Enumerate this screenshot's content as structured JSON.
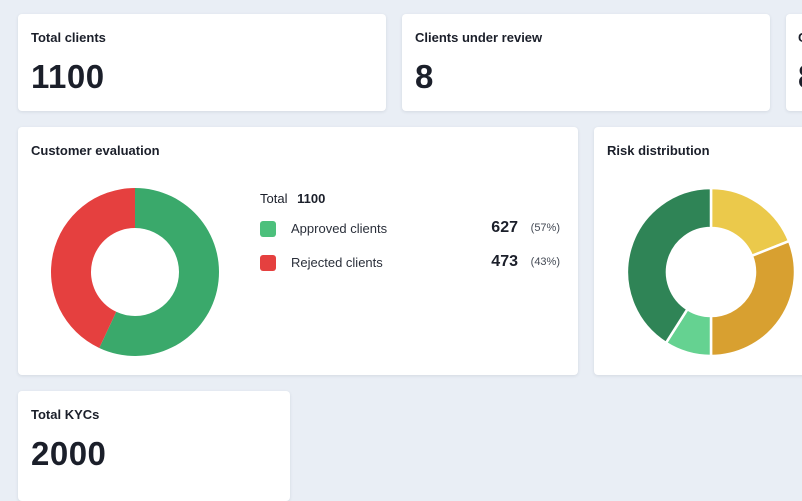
{
  "stats": {
    "total_clients": {
      "label": "Total clients",
      "value": "1100"
    },
    "clients_under_review": {
      "label": "Clients under review",
      "value": "8"
    },
    "third": {
      "label": "C",
      "value": "8"
    },
    "total_kycs": {
      "label": "Total KYCs",
      "value": "2000"
    }
  },
  "customer_evaluation": {
    "title": "Customer evaluation",
    "total_label": "Total",
    "total_value": "1100",
    "items": [
      {
        "label": "Approved clients",
        "value": "627",
        "percent": "(57%)",
        "color": "#3aa96b"
      },
      {
        "label": "Rejected clients",
        "value": "473",
        "percent": "(43%)",
        "color": "#e5403f"
      }
    ]
  },
  "risk_distribution": {
    "title": "Risk distribution"
  },
  "chart_data": [
    {
      "type": "pie",
      "categories": [
        "Approved clients",
        "Rejected clients"
      ],
      "values": [
        627,
        473
      ],
      "colors": [
        "#3aa96b",
        "#e5403f"
      ]
    },
    {
      "type": "pie",
      "values": [
        19,
        31,
        9,
        41
      ],
      "colors": [
        "#ebc94b",
        "#d8a030",
        "#65d291",
        "#2f8456"
      ]
    }
  ]
}
